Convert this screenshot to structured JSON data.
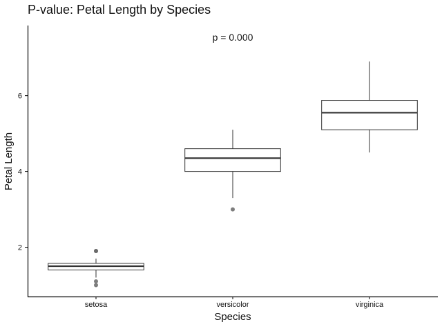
{
  "chart_data": {
    "type": "box",
    "title": "P-value: Petal Length by Species",
    "xlabel": "Species",
    "ylabel": "Petal Length",
    "annotation": "p = 0.000",
    "categories": [
      "setosa",
      "versicolor",
      "virginica"
    ],
    "ylim": [
      0.7,
      7.85
    ],
    "yticks": [
      2,
      4,
      6
    ],
    "grid": false,
    "legend": "none",
    "boxes": [
      {
        "category": "setosa",
        "whisker_low": 1.2,
        "q1": 1.4,
        "median": 1.5,
        "q3": 1.575,
        "whisker_high": 1.7,
        "outliers": [
          1.0,
          1.1,
          1.9,
          1.9
        ]
      },
      {
        "category": "versicolor",
        "whisker_low": 3.3,
        "q1": 4.0,
        "median": 4.35,
        "q3": 4.6,
        "whisker_high": 5.1,
        "outliers": [
          3.0
        ]
      },
      {
        "category": "virginica",
        "whisker_low": 4.5,
        "q1": 5.1,
        "median": 5.55,
        "q3": 5.875,
        "whisker_high": 6.9,
        "outliers": []
      }
    ],
    "colors": {
      "box_edge": "#333333",
      "box_fill": "#ffffff",
      "outlier": "#666666",
      "axis": "#000000"
    }
  }
}
